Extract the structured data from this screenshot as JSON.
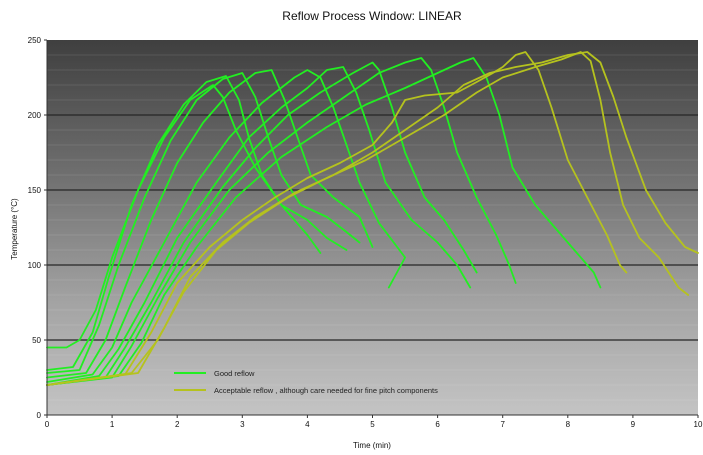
{
  "chart_data": {
    "type": "line",
    "title": "Reflow Process Window:  LINEAR",
    "xlabel": "Time (min)",
    "ylabel": "Temperature (°C)",
    "xlim": [
      0,
      10
    ],
    "ylim": [
      0,
      250
    ],
    "xticks": [
      "0",
      "1",
      "2",
      "3",
      "4",
      "5",
      "6",
      "7",
      "8",
      "9",
      "10"
    ],
    "yticks": [
      "0",
      "50",
      "100",
      "150",
      "200",
      "250"
    ],
    "grid": true,
    "legend": {
      "placement": "bottom-center",
      "entries": [
        {
          "label": "Good reflow",
          "color": "#22ee22"
        },
        {
          "label": "Acceptable reflow , although care needed for fine pitch components",
          "color": "#b5c21e"
        }
      ]
    },
    "series": [
      {
        "color": "#22ee22",
        "points": [
          [
            0,
            45
          ],
          [
            0.3,
            45
          ],
          [
            0.5,
            50
          ],
          [
            0.75,
            70
          ],
          [
            1.0,
            105
          ],
          [
            1.4,
            150
          ],
          [
            1.8,
            185
          ],
          [
            2.2,
            210
          ],
          [
            2.55,
            220
          ],
          [
            2.7,
            212
          ],
          [
            2.9,
            190
          ],
          [
            3.2,
            165
          ],
          [
            3.6,
            140
          ],
          [
            4.0,
            120
          ],
          [
            4.2,
            108
          ]
        ]
      },
      {
        "color": "#22ee22",
        "points": [
          [
            0,
            30
          ],
          [
            0.4,
            32
          ],
          [
            0.7,
            55
          ],
          [
            0.95,
            92
          ],
          [
            1.3,
            140
          ],
          [
            1.7,
            180
          ],
          [
            2.1,
            207
          ],
          [
            2.45,
            222
          ],
          [
            2.75,
            226
          ],
          [
            2.95,
            210
          ],
          [
            3.1,
            185
          ],
          [
            3.3,
            160
          ],
          [
            3.6,
            140
          ],
          [
            4.0,
            130
          ],
          [
            4.3,
            118
          ],
          [
            4.6,
            110
          ]
        ]
      },
      {
        "color": "#22ee22",
        "points": [
          [
            0,
            28
          ],
          [
            0.5,
            30
          ],
          [
            0.8,
            60
          ],
          [
            1.1,
            100
          ],
          [
            1.5,
            145
          ],
          [
            1.9,
            183
          ],
          [
            2.3,
            210
          ],
          [
            2.7,
            224
          ],
          [
            3.0,
            228
          ],
          [
            3.2,
            212
          ],
          [
            3.4,
            185
          ],
          [
            3.6,
            160
          ],
          [
            3.9,
            140
          ],
          [
            4.3,
            132
          ],
          [
            4.6,
            122
          ],
          [
            4.8,
            115
          ]
        ]
      },
      {
        "color": "#22ee22",
        "points": [
          [
            0,
            25
          ],
          [
            0.6,
            28
          ],
          [
            0.9,
            50
          ],
          [
            1.2,
            85
          ],
          [
            1.6,
            130
          ],
          [
            2.0,
            168
          ],
          [
            2.4,
            195
          ],
          [
            2.8,
            215
          ],
          [
            3.2,
            228
          ],
          [
            3.45,
            230
          ],
          [
            3.65,
            210
          ],
          [
            3.85,
            185
          ],
          [
            4.05,
            160
          ],
          [
            4.4,
            145
          ],
          [
            4.8,
            132
          ],
          [
            5.0,
            112
          ]
        ]
      },
      {
        "color": "#22ee22",
        "points": [
          [
            0,
            22
          ],
          [
            0.7,
            27
          ],
          [
            1.0,
            45
          ],
          [
            1.3,
            75
          ],
          [
            1.8,
            115
          ],
          [
            2.3,
            155
          ],
          [
            2.8,
            185
          ],
          [
            3.3,
            208
          ],
          [
            3.8,
            225
          ],
          [
            4.0,
            230
          ],
          [
            4.2,
            225
          ],
          [
            4.4,
            205
          ],
          [
            4.6,
            180
          ],
          [
            4.8,
            155
          ],
          [
            5.1,
            128
          ],
          [
            5.5,
            105
          ],
          [
            5.25,
            85
          ]
        ]
      },
      {
        "color": "#22ee22",
        "points": [
          [
            0,
            20
          ],
          [
            0.8,
            26
          ],
          [
            1.1,
            44
          ],
          [
            1.5,
            75
          ],
          [
            2.0,
            118
          ],
          [
            2.6,
            155
          ],
          [
            3.1,
            185
          ],
          [
            3.6,
            205
          ],
          [
            4.0,
            218
          ],
          [
            4.3,
            230
          ],
          [
            4.55,
            232
          ],
          [
            4.75,
            215
          ],
          [
            4.95,
            190
          ],
          [
            5.2,
            155
          ],
          [
            5.6,
            130
          ],
          [
            6.0,
            115
          ],
          [
            6.3,
            100
          ],
          [
            6.5,
            85
          ]
        ]
      },
      {
        "color": "#22ee22",
        "points": [
          [
            0,
            20
          ],
          [
            0.9,
            25
          ],
          [
            1.2,
            45
          ],
          [
            1.6,
            75
          ],
          [
            2.1,
            115
          ],
          [
            2.7,
            152
          ],
          [
            3.2,
            178
          ],
          [
            3.7,
            200
          ],
          [
            4.2,
            215
          ],
          [
            4.7,
            228
          ],
          [
            5.0,
            235
          ],
          [
            5.1,
            230
          ],
          [
            5.3,
            205
          ],
          [
            5.5,
            175
          ],
          [
            5.8,
            145
          ],
          [
            6.1,
            130
          ],
          [
            6.4,
            110
          ],
          [
            6.6,
            95
          ]
        ]
      },
      {
        "color": "#22ee22",
        "points": [
          [
            0,
            20
          ],
          [
            1.0,
            25
          ],
          [
            1.3,
            46
          ],
          [
            1.7,
            78
          ],
          [
            2.2,
            115
          ],
          [
            2.8,
            150
          ],
          [
            3.4,
            175
          ],
          [
            4.0,
            195
          ],
          [
            4.6,
            213
          ],
          [
            5.1,
            228
          ],
          [
            5.5,
            235
          ],
          [
            5.75,
            238
          ],
          [
            5.9,
            230
          ],
          [
            6.1,
            205
          ],
          [
            6.3,
            175
          ],
          [
            6.6,
            145
          ],
          [
            6.9,
            120
          ],
          [
            7.1,
            100
          ],
          [
            7.2,
            88
          ]
        ]
      },
      {
        "color": "#22ee22",
        "points": [
          [
            0,
            20
          ],
          [
            1.1,
            26
          ],
          [
            1.45,
            48
          ],
          [
            1.8,
            80
          ],
          [
            2.3,
            112
          ],
          [
            2.9,
            145
          ],
          [
            3.6,
            172
          ],
          [
            4.3,
            192
          ],
          [
            4.9,
            207
          ],
          [
            5.5,
            218
          ],
          [
            6.0,
            228
          ],
          [
            6.35,
            235
          ],
          [
            6.55,
            238
          ],
          [
            6.75,
            225
          ],
          [
            6.95,
            200
          ],
          [
            7.15,
            165
          ],
          [
            7.5,
            140
          ],
          [
            8.0,
            115
          ],
          [
            8.4,
            95
          ],
          [
            8.5,
            85
          ]
        ]
      },
      {
        "color": "#b5c21e",
        "points": [
          [
            0,
            20
          ],
          [
            1.2,
            27
          ],
          [
            1.6,
            55
          ],
          [
            2.0,
            88
          ],
          [
            2.5,
            112
          ],
          [
            3.0,
            130
          ],
          [
            3.5,
            145
          ],
          [
            4.0,
            158
          ],
          [
            4.5,
            168
          ],
          [
            5.0,
            180
          ],
          [
            5.3,
            195
          ],
          [
            5.5,
            210
          ],
          [
            5.8,
            213
          ],
          [
            6.3,
            215
          ],
          [
            6.6,
            222
          ],
          [
            6.85,
            228
          ],
          [
            7.0,
            232
          ],
          [
            7.2,
            240
          ],
          [
            7.35,
            242
          ],
          [
            7.55,
            230
          ],
          [
            7.75,
            205
          ],
          [
            8.0,
            170
          ],
          [
            8.3,
            145
          ],
          [
            8.6,
            120
          ],
          [
            8.8,
            100
          ],
          [
            8.9,
            95
          ]
        ]
      },
      {
        "color": "#b5c21e",
        "points": [
          [
            0,
            20
          ],
          [
            1.4,
            28
          ],
          [
            1.8,
            58
          ],
          [
            2.2,
            92
          ],
          [
            2.7,
            115
          ],
          [
            3.2,
            132
          ],
          [
            3.8,
            148
          ],
          [
            4.4,
            160
          ],
          [
            5.0,
            175
          ],
          [
            5.5,
            190
          ],
          [
            6.0,
            205
          ],
          [
            6.4,
            220
          ],
          [
            6.8,
            228
          ],
          [
            7.2,
            232
          ],
          [
            7.6,
            235
          ],
          [
            8.0,
            240
          ],
          [
            8.3,
            242
          ],
          [
            8.5,
            235
          ],
          [
            8.7,
            212
          ],
          [
            8.9,
            185
          ],
          [
            9.2,
            150
          ],
          [
            9.5,
            128
          ],
          [
            9.8,
            112
          ],
          [
            10.0,
            108
          ]
        ]
      },
      {
        "color": "#b5c21e",
        "points": [
          [
            0,
            20
          ],
          [
            1.3,
            28
          ],
          [
            1.7,
            50
          ],
          [
            2.1,
            82
          ],
          [
            2.6,
            110
          ],
          [
            3.1,
            128
          ],
          [
            3.7,
            145
          ],
          [
            4.3,
            158
          ],
          [
            4.9,
            170
          ],
          [
            5.5,
            185
          ],
          [
            6.1,
            200
          ],
          [
            6.6,
            215
          ],
          [
            7.0,
            225
          ],
          [
            7.5,
            232
          ],
          [
            7.9,
            237
          ],
          [
            8.2,
            242
          ],
          [
            8.35,
            236
          ],
          [
            8.5,
            210
          ],
          [
            8.65,
            175
          ],
          [
            8.85,
            140
          ],
          [
            9.1,
            118
          ],
          [
            9.4,
            105
          ],
          [
            9.7,
            85
          ],
          [
            9.85,
            80
          ]
        ]
      }
    ]
  }
}
